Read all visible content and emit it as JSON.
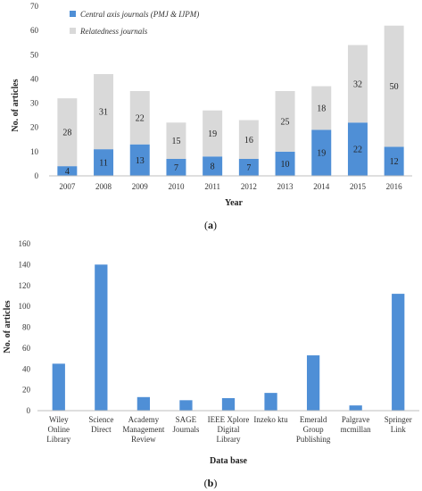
{
  "chart_data": [
    {
      "type": "bar",
      "stacked": true,
      "categories": [
        "2007",
        "2008",
        "2009",
        "2010",
        "2011",
        "2012",
        "2013",
        "2014",
        "2015",
        "2016"
      ],
      "series": [
        {
          "name": "Central axis journals (PMJ & IJPM)",
          "values": [
            4,
            11,
            13,
            7,
            8,
            7,
            10,
            19,
            22,
            12
          ],
          "color": "#4f8fd6"
        },
        {
          "name": "Relatedness journals",
          "values": [
            28,
            31,
            22,
            15,
            19,
            16,
            25,
            18,
            32,
            50
          ],
          "color": "#d9d9d9"
        }
      ],
      "xlabel": "Year",
      "ylabel": "No. of articles",
      "ylim": [
        0,
        70
      ],
      "yticks": [
        "0",
        "10",
        "20",
        "30",
        "40",
        "50",
        "60",
        "70"
      ],
      "legend": "top-left",
      "grid": false,
      "caption": {
        "open": "(",
        "letter": "a",
        "close": ")"
      }
    },
    {
      "type": "bar",
      "categories": [
        [
          "Wiley",
          "Online",
          "Library"
        ],
        [
          "Science",
          "Direct"
        ],
        [
          "Academy",
          "Management",
          "Review"
        ],
        [
          "SAGE",
          "Journals"
        ],
        [
          "IEEE Xplore",
          "Digital",
          "Library"
        ],
        [
          "Inzeko ktu"
        ],
        [
          "Emerald",
          "Group",
          "Publishing"
        ],
        [
          "Palgrave",
          "mcmillan"
        ],
        [
          "Springer",
          "Link"
        ]
      ],
      "values": [
        45,
        140,
        13,
        10,
        12,
        17,
        53,
        5,
        112
      ],
      "color": "#4f8fd6",
      "xlabel": "Data base",
      "ylabel": "No. of articles",
      "ylim": [
        0,
        160
      ],
      "yticks": [
        "0",
        "20",
        "40",
        "60",
        "80",
        "100",
        "120",
        "140",
        "160"
      ],
      "grid": false,
      "caption": {
        "open": "(",
        "letter": "b",
        "close": ")"
      }
    }
  ]
}
